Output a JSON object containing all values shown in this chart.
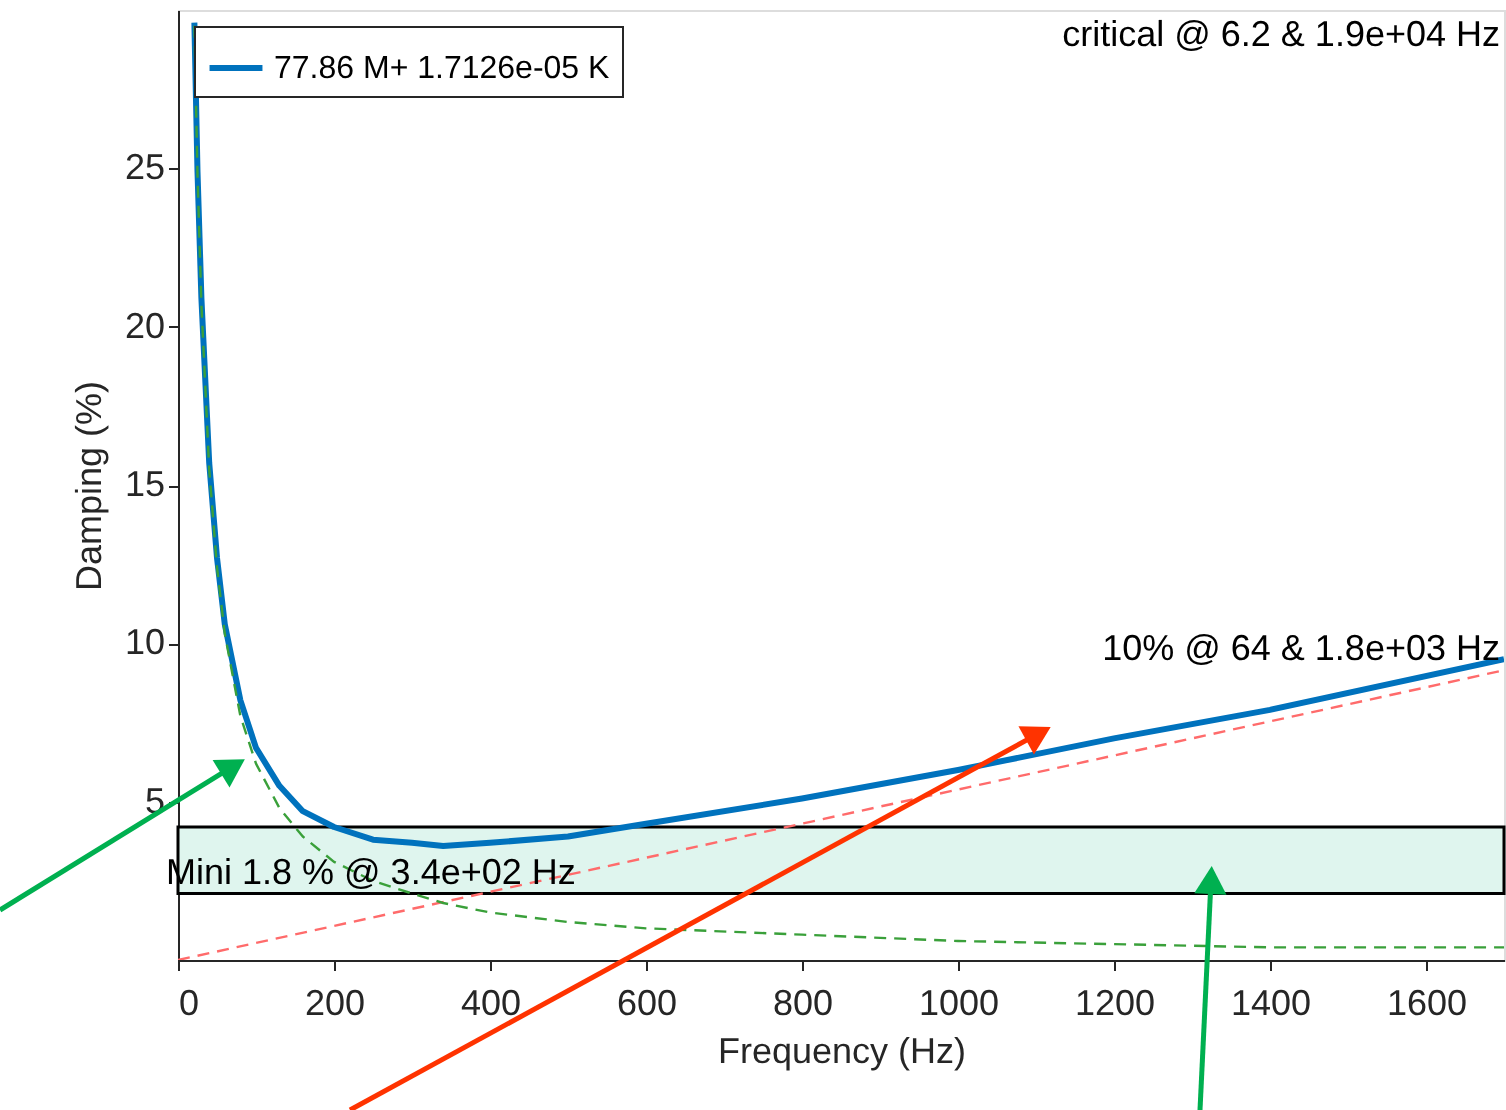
{
  "chart_data": {
    "type": "line",
    "xlabel": "Frequency (Hz)",
    "ylabel": "Damping (%)",
    "xlim": [
      0,
      1700
    ],
    "xticks": [
      0,
      200,
      400,
      600,
      800,
      1000,
      1200,
      1400,
      1600
    ],
    "ylim": [
      0,
      30
    ],
    "yticks": [
      5,
      10,
      15,
      20,
      25
    ],
    "grid": false,
    "legend": "top left",
    "series": [
      {
        "name": "77.86 M+ 1.7126e-05 K",
        "color": "#0072bd",
        "line_style": "solid",
        "x": [
          21,
          25,
          30,
          40,
          50,
          60,
          80,
          100,
          130,
          160,
          200,
          250,
          300,
          340,
          400,
          500,
          600,
          800,
          1000,
          1200,
          1400,
          1700
        ],
        "values": [
          29.6,
          24.9,
          20.9,
          15.7,
          12.7,
          10.6,
          8.2,
          6.7,
          5.5,
          4.7,
          4.2,
          3.8,
          3.7,
          3.6,
          3.7,
          3.9,
          4.3,
          5.1,
          6.0,
          7.0,
          7.9,
          9.5
        ]
      },
      {
        "color": "#3aa03a",
        "line_style": "dashed",
        "x": [
          21,
          25,
          30,
          40,
          50,
          60,
          80,
          100,
          130,
          160,
          200,
          250,
          300,
          340,
          400,
          500,
          600,
          800,
          1000,
          1200,
          1400,
          1700
        ],
        "values": [
          29.5,
          24.8,
          20.7,
          15.5,
          12.4,
          10.3,
          7.7,
          6.2,
          4.8,
          3.9,
          3.1,
          2.5,
          2.1,
          1.8,
          1.5,
          1.2,
          1.0,
          0.8,
          0.6,
          0.5,
          0.4,
          0.4
        ]
      },
      {
        "color": "#ff6b6b",
        "line_style": "dashed",
        "x": [
          0,
          1700
        ],
        "values": [
          0,
          9.15
        ]
      }
    ],
    "bands": [
      {
        "axis": "y",
        "from": 2.1,
        "to": 4.2,
        "label": "Mini 1.8 % @ 3.4e+02 Hz",
        "color": "#dff5ee"
      }
    ],
    "annotations": [
      "critical @ 6.2 & 1.9e+04 Hz",
      "10% @ 64 & 1.8e+03 Hz"
    ]
  }
}
